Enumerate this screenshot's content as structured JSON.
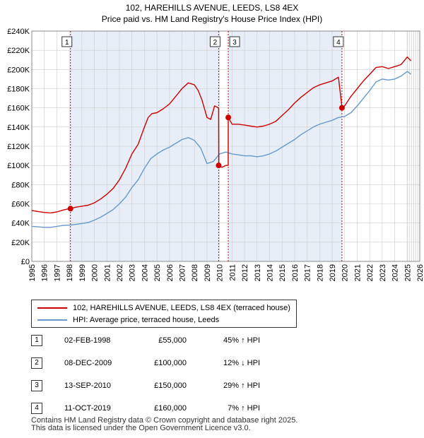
{
  "colors": {
    "price": "#cc0000",
    "hpi": "#6699cc",
    "shade": "#e8eef8",
    "grid": "#cccccc",
    "marker": "#cc0000"
  },
  "chart_data": {
    "type": "line",
    "title": "102, HAREHILLS AVENUE, LEEDS, LS8 4EX",
    "subtitle": "Price paid vs. HM Land Registry's House Price Index (HPI)",
    "xlim": [
      1995,
      2026
    ],
    "ylim": [
      0,
      240000
    ],
    "x_ticks": [
      1995,
      1996,
      1997,
      1998,
      1999,
      2000,
      2001,
      2002,
      2003,
      2004,
      2005,
      2006,
      2007,
      2008,
      2009,
      2010,
      2011,
      2012,
      2013,
      2014,
      2015,
      2016,
      2017,
      2018,
      2019,
      2020,
      2021,
      2022,
      2023,
      2024,
      2025,
      2026
    ],
    "y_ticks": [
      {
        "value": 0,
        "label": "£0"
      },
      {
        "value": 20000,
        "label": "£20K"
      },
      {
        "value": 40000,
        "label": "£40K"
      },
      {
        "value": 60000,
        "label": "£60K"
      },
      {
        "value": 80000,
        "label": "£80K"
      },
      {
        "value": 100000,
        "label": "£100K"
      },
      {
        "value": 120000,
        "label": "£120K"
      },
      {
        "value": 140000,
        "label": "£140K"
      },
      {
        "value": 160000,
        "label": "£160K"
      },
      {
        "value": 180000,
        "label": "£180K"
      },
      {
        "value": 200000,
        "label": "£200K"
      },
      {
        "value": 220000,
        "label": "£220K"
      },
      {
        "value": 240000,
        "label": "£240K"
      }
    ],
    "shaded_intervals": [
      [
        1998.09,
        2009.93
      ],
      [
        2010.7,
        2019.78
      ]
    ],
    "future_start": 2025.0,
    "series": [
      {
        "name": "102, HAREHILLS AVENUE, LEEDS, LS8 4EX (terraced house)",
        "color": "#cc0000",
        "points": [
          [
            1995.0,
            53000
          ],
          [
            1995.5,
            52000
          ],
          [
            1996.0,
            51000
          ],
          [
            1996.5,
            50500
          ],
          [
            1997.0,
            51500
          ],
          [
            1997.5,
            53500
          ],
          [
            1998.0,
            55000
          ],
          [
            1998.09,
            55000
          ],
          [
            1998.5,
            56500
          ],
          [
            1999.0,
            57500
          ],
          [
            1999.5,
            58500
          ],
          [
            2000.0,
            61000
          ],
          [
            2000.5,
            65000
          ],
          [
            2001.0,
            70000
          ],
          [
            2001.5,
            76000
          ],
          [
            2002.0,
            85000
          ],
          [
            2002.5,
            97000
          ],
          [
            2003.0,
            112000
          ],
          [
            2003.5,
            122000
          ],
          [
            2004.0,
            140000
          ],
          [
            2004.3,
            150000
          ],
          [
            2004.6,
            154000
          ],
          [
            2005.0,
            155000
          ],
          [
            2005.5,
            159000
          ],
          [
            2006.0,
            164000
          ],
          [
            2006.5,
            172000
          ],
          [
            2007.0,
            180000
          ],
          [
            2007.5,
            186000
          ],
          [
            2008.0,
            184000
          ],
          [
            2008.3,
            178000
          ],
          [
            2008.6,
            168000
          ],
          [
            2009.0,
            150000
          ],
          [
            2009.3,
            148000
          ],
          [
            2009.6,
            162000
          ],
          [
            2009.93,
            160000
          ],
          [
            2009.94,
            100000
          ],
          [
            2010.2,
            98000
          ],
          [
            2010.5,
            100000
          ],
          [
            2010.69,
            100000
          ],
          [
            2010.7,
            150000
          ],
          [
            2011.0,
            143000
          ],
          [
            2011.5,
            143000
          ],
          [
            2012.0,
            142000
          ],
          [
            2012.5,
            141000
          ],
          [
            2013.0,
            140000
          ],
          [
            2013.5,
            141000
          ],
          [
            2014.0,
            143000
          ],
          [
            2014.5,
            146000
          ],
          [
            2015.0,
            152000
          ],
          [
            2015.5,
            158000
          ],
          [
            2016.0,
            165000
          ],
          [
            2016.5,
            171000
          ],
          [
            2017.0,
            176000
          ],
          [
            2017.5,
            181000
          ],
          [
            2018.0,
            184000
          ],
          [
            2018.5,
            186000
          ],
          [
            2019.0,
            188000
          ],
          [
            2019.5,
            192000
          ],
          [
            2019.77,
            162000
          ],
          [
            2019.78,
            160000
          ],
          [
            2020.0,
            162000
          ],
          [
            2020.5,
            172000
          ],
          [
            2021.0,
            180000
          ],
          [
            2021.5,
            188000
          ],
          [
            2022.0,
            195000
          ],
          [
            2022.5,
            202000
          ],
          [
            2023.0,
            203000
          ],
          [
            2023.5,
            201000
          ],
          [
            2024.0,
            203000
          ],
          [
            2024.5,
            205000
          ],
          [
            2025.0,
            213000
          ],
          [
            2025.3,
            209000
          ]
        ]
      },
      {
        "name": "HPI: Average price, terraced house, Leeds",
        "color": "#6699cc",
        "points": [
          [
            1995.0,
            36500
          ],
          [
            1995.5,
            36000
          ],
          [
            1996.0,
            35500
          ],
          [
            1996.5,
            35500
          ],
          [
            1997.0,
            36500
          ],
          [
            1997.5,
            37500
          ],
          [
            1998.0,
            37800
          ],
          [
            1998.5,
            38500
          ],
          [
            1999.0,
            39500
          ],
          [
            1999.5,
            40500
          ],
          [
            2000.0,
            43000
          ],
          [
            2000.5,
            46000
          ],
          [
            2001.0,
            50000
          ],
          [
            2001.5,
            54000
          ],
          [
            2002.0,
            60000
          ],
          [
            2002.5,
            67000
          ],
          [
            2003.0,
            77000
          ],
          [
            2003.5,
            85000
          ],
          [
            2004.0,
            97000
          ],
          [
            2004.5,
            107000
          ],
          [
            2005.0,
            112000
          ],
          [
            2005.5,
            116000
          ],
          [
            2006.0,
            119000
          ],
          [
            2006.5,
            123000
          ],
          [
            2007.0,
            127000
          ],
          [
            2007.5,
            129000
          ],
          [
            2008.0,
            126000
          ],
          [
            2008.5,
            118000
          ],
          [
            2009.0,
            102000
          ],
          [
            2009.5,
            104000
          ],
          [
            2010.0,
            112000
          ],
          [
            2010.5,
            114000
          ],
          [
            2011.0,
            112000
          ],
          [
            2011.5,
            111000
          ],
          [
            2012.0,
            110000
          ],
          [
            2012.5,
            110000
          ],
          [
            2013.0,
            109000
          ],
          [
            2013.5,
            110000
          ],
          [
            2014.0,
            112000
          ],
          [
            2014.5,
            115000
          ],
          [
            2015.0,
            119000
          ],
          [
            2015.5,
            123000
          ],
          [
            2016.0,
            127000
          ],
          [
            2016.5,
            132000
          ],
          [
            2017.0,
            136000
          ],
          [
            2017.5,
            140000
          ],
          [
            2018.0,
            143000
          ],
          [
            2018.5,
            145000
          ],
          [
            2019.0,
            147000
          ],
          [
            2019.5,
            150000
          ],
          [
            2020.0,
            151000
          ],
          [
            2020.5,
            155000
          ],
          [
            2021.0,
            162000
          ],
          [
            2021.5,
            170000
          ],
          [
            2022.0,
            178000
          ],
          [
            2022.5,
            187000
          ],
          [
            2023.0,
            190000
          ],
          [
            2023.5,
            189000
          ],
          [
            2024.0,
            190000
          ],
          [
            2024.5,
            193000
          ],
          [
            2025.0,
            198000
          ],
          [
            2025.3,
            195000
          ]
        ]
      }
    ],
    "markers": [
      {
        "label": "1",
        "x": 1998.09,
        "y": 55000
      },
      {
        "label": "2",
        "x": 2009.93,
        "y": 100000
      },
      {
        "label": "3",
        "x": 2010.7,
        "y": 150000
      },
      {
        "label": "4",
        "x": 2019.78,
        "y": 160000
      }
    ]
  },
  "legend": {
    "price_label": "102, HAREHILLS AVENUE, LEEDS, LS8 4EX (terraced house)",
    "hpi_label": "HPI: Average price, terraced house, Leeds"
  },
  "sales": [
    {
      "num": "1",
      "date": "02-FEB-1998",
      "price": "£55,000",
      "pct": "45% ↑ HPI"
    },
    {
      "num": "2",
      "date": "08-DEC-2009",
      "price": "£100,000",
      "pct": "12% ↓ HPI"
    },
    {
      "num": "3",
      "date": "13-SEP-2010",
      "price": "£150,000",
      "pct": "29% ↑ HPI"
    },
    {
      "num": "4",
      "date": "11-OCT-2019",
      "price": "£160,000",
      "pct": "7% ↑ HPI"
    }
  ],
  "footer": {
    "line1": "Contains HM Land Registry data © Crown copyright and database right 2025.",
    "line2": "This data is licensed under the Open Government Licence v3.0."
  }
}
